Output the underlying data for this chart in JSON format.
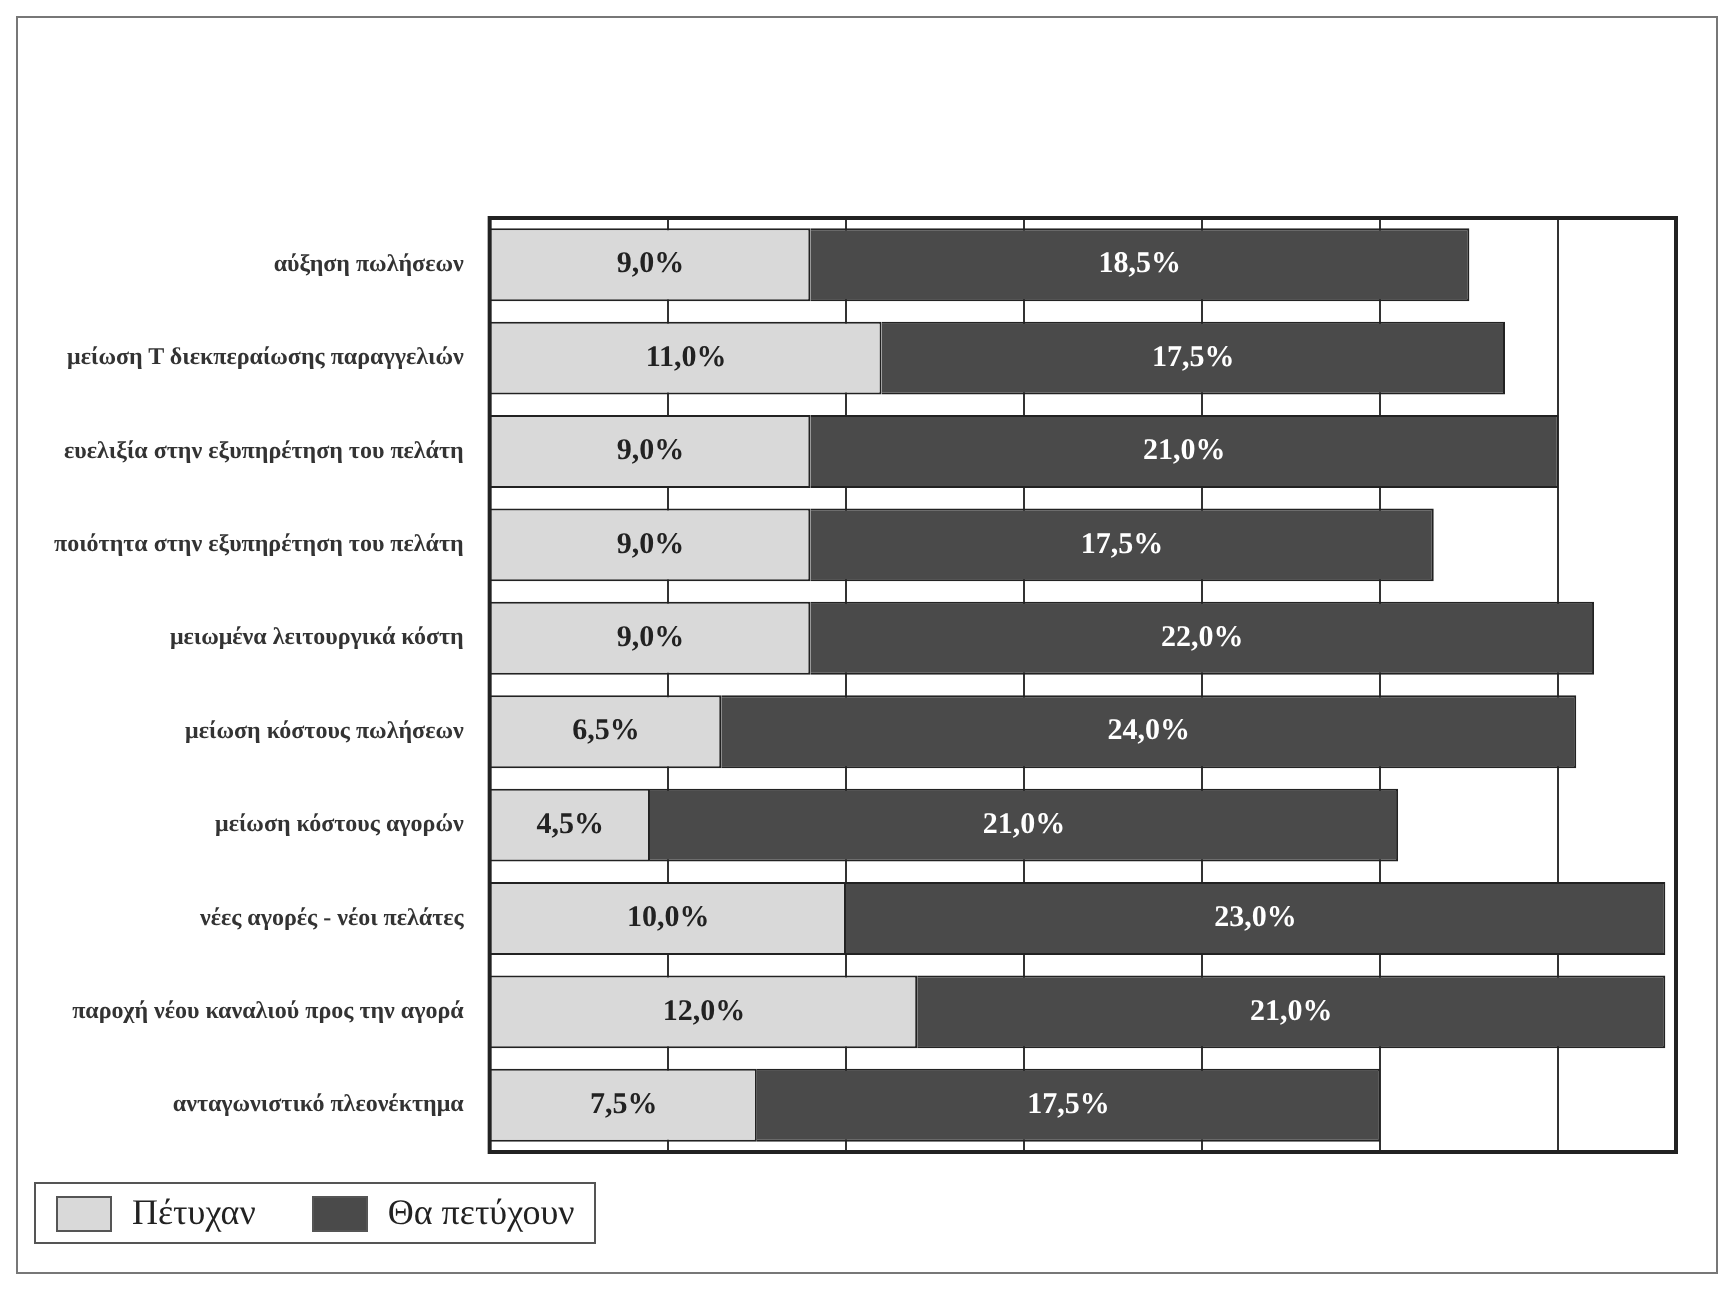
{
  "chart_data": {
    "type": "bar",
    "orientation": "horizontal",
    "stacked": true,
    "categories": [
      "αύξηση πωλήσεων",
      "μείωση Τ διεκπεραίωσης παραγγελιών",
      "ευελιξία στην εξυπηρέτηση του πελάτη",
      "ποιότητα στην εξυπηρέτηση του πελάτη",
      "μειωμένα λειτουργικά κόστη",
      "μείωση κόστους πωλήσεων",
      "μείωση κόστους αγορών",
      "νέες αγορές - νέοι πελάτες",
      "παροχή νέου καναλιού προς την αγορά",
      "ανταγωνιστικό πλεονέκτημα"
    ],
    "series": [
      {
        "name": "Πέτυχαν",
        "color": "#d9d9d9",
        "values": [
          9.0,
          11.0,
          9.0,
          9.0,
          9.0,
          6.5,
          4.5,
          10.0,
          12.0,
          7.5
        ],
        "value_labels": [
          "9,0%",
          "11,0%",
          "9,0%",
          "9,0%",
          "9,0%",
          "6,5%",
          "4,5%",
          "10,0%",
          "12,0%",
          "7,5%"
        ]
      },
      {
        "name": "Θα πετύχουν",
        "color": "#4a4a4a",
        "values": [
          18.5,
          17.5,
          21.0,
          17.5,
          22.0,
          24.0,
          21.0,
          23.0,
          21.0,
          17.5
        ],
        "value_labels": [
          "18,5%",
          "17,5%",
          "21,0%",
          "17,5%",
          "22,0%",
          "24,0%",
          "21,0%",
          "23,0%",
          "21,0%",
          "17,5%"
        ]
      }
    ],
    "xlim": [
      0,
      33.3
    ],
    "xticks": [
      {
        "value": 0,
        "label": null
      },
      {
        "value": 5,
        "label": null
      },
      {
        "value": 10,
        "label": null
      },
      {
        "value": 15,
        "label": null
      },
      {
        "value": 20,
        "label": null
      },
      {
        "value": 25,
        "label": null
      },
      {
        "value": 30,
        "label": null
      }
    ],
    "grid": "x",
    "legend": "bottom left",
    "tick_labels": "y"
  }
}
